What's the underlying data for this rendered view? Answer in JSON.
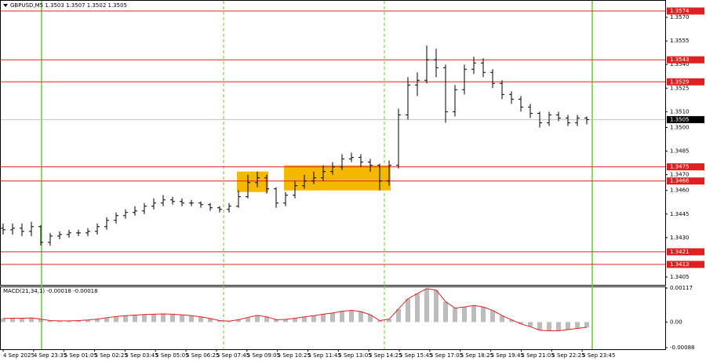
{
  "chart_data": {
    "type": "candlestick",
    "title": "GBPUSD,M5  1.3503 1.3507 1.3502 1.3505",
    "x_labels": [
      "4 Sep 2025",
      "4 Sep 23:35",
      "5 Sep 01:05",
      "5 Sep 02:25",
      "5 Sep 03:45",
      "5 Sep 05:05",
      "5 Sep 06:25",
      "5 Sep 07:45",
      "5 Sep 09:05",
      "5 Sep 10:25",
      "5 Sep 11:45",
      "5 Sep 13:05",
      "5 Sep 14:25",
      "5 Sep 15:45",
      "5 Sep 17:05",
      "5 Sep 18:25",
      "5 Sep 19:45",
      "5 Sep 21:05",
      "5 Sep 22:25",
      "5 Sep 23:45"
    ],
    "color": "#000000",
    "open": [
      1.3436,
      1.3435,
      1.3436,
      1.3434,
      1.3437,
      1.3427,
      1.3431,
      1.3432,
      1.3433,
      1.3433,
      1.3434,
      1.3437,
      1.3441,
      1.3444,
      1.3446,
      1.3447,
      1.345,
      1.3452,
      1.3454,
      1.3453,
      1.3452,
      1.3452,
      1.3451,
      1.3449,
      1.3448,
      1.345,
      1.3456,
      1.3465,
      1.3468,
      1.3461,
      1.3452,
      1.3457,
      1.3463,
      1.3466,
      1.3468,
      1.3472,
      1.3475,
      1.348,
      1.3481,
      1.3478,
      1.3476,
      1.3466,
      1.3476,
      1.3508,
      1.3527,
      1.353,
      1.3543,
      1.3538,
      1.351,
      1.3524,
      1.3537,
      1.3541,
      1.3535,
      1.3528,
      1.3521,
      1.3518,
      1.3513,
      1.3509,
      1.3503,
      1.3508,
      1.3506,
      1.3503,
      1.3506
    ],
    "high": [
      1.3439,
      1.3439,
      1.3439,
      1.344,
      1.3438,
      1.3433,
      1.3434,
      1.3435,
      1.3435,
      1.3436,
      1.3439,
      1.3443,
      1.3446,
      1.3448,
      1.345,
      1.3452,
      1.3455,
      1.3457,
      1.3456,
      1.3455,
      1.3454,
      1.3453,
      1.3452,
      1.345,
      1.3452,
      1.346,
      1.347,
      1.3472,
      1.347,
      1.3462,
      1.3459,
      1.3466,
      1.347,
      1.3472,
      1.3476,
      1.3478,
      1.3483,
      1.3484,
      1.3483,
      1.348,
      1.3477,
      1.3479,
      1.3512,
      1.3532,
      1.3535,
      1.3552,
      1.355,
      1.354,
      1.3527,
      1.354,
      1.3545,
      1.3544,
      1.3537,
      1.353,
      1.3523,
      1.352,
      1.3515,
      1.351,
      1.351,
      1.351,
      1.3508,
      1.3508,
      1.3507
    ],
    "low": [
      1.3432,
      1.3432,
      1.3431,
      1.3431,
      1.3425,
      1.3425,
      1.3429,
      1.343,
      1.3431,
      1.3431,
      1.3432,
      1.3435,
      1.3439,
      1.3442,
      1.3444,
      1.3445,
      1.3448,
      1.345,
      1.3451,
      1.345,
      1.345,
      1.3449,
      1.3447,
      1.3446,
      1.3446,
      1.3449,
      1.3455,
      1.3462,
      1.3458,
      1.3449,
      1.345,
      1.3455,
      1.3461,
      1.3464,
      1.3466,
      1.347,
      1.3473,
      1.3478,
      1.3475,
      1.3472,
      1.346,
      1.3463,
      1.3474,
      1.3505,
      1.352,
      1.3528,
      1.3532,
      1.3503,
      1.3507,
      1.3521,
      1.3534,
      1.3532,
      1.3525,
      1.3518,
      1.3515,
      1.351,
      1.3506,
      1.35,
      1.3501,
      1.3504,
      1.3501,
      1.3501,
      1.3502
    ],
    "close": [
      1.3435,
      1.3436,
      1.3434,
      1.3437,
      1.3427,
      1.3431,
      1.3432,
      1.3433,
      1.3433,
      1.3434,
      1.3437,
      1.3441,
      1.3444,
      1.3446,
      1.3447,
      1.345,
      1.3452,
      1.3454,
      1.3453,
      1.3452,
      1.3452,
      1.3451,
      1.3449,
      1.3448,
      1.345,
      1.3456,
      1.3465,
      1.3468,
      1.3461,
      1.3452,
      1.3457,
      1.3463,
      1.3466,
      1.3468,
      1.3472,
      1.3475,
      1.348,
      1.3481,
      1.3478,
      1.3476,
      1.3466,
      1.3476,
      1.3508,
      1.3527,
      1.353,
      1.3543,
      1.3538,
      1.351,
      1.3524,
      1.3537,
      1.3541,
      1.3535,
      1.3528,
      1.3521,
      1.3518,
      1.3513,
      1.3509,
      1.3503,
      1.3508,
      1.3506,
      1.3503,
      1.3506,
      1.3505
    ],
    "ylim": [
      1.34,
      1.358
    ],
    "yticks": [
      {
        "value": 1.357,
        "label": "1.3570"
      },
      {
        "value": 1.3555,
        "label": "1.3555"
      },
      {
        "value": 1.354,
        "label": "1.3540"
      },
      {
        "value": 1.3525,
        "label": "1.3525"
      },
      {
        "value": 1.351,
        "label": "1.3510"
      },
      {
        "value": 1.35,
        "label": "1.3500"
      },
      {
        "value": 1.3485,
        "label": "1.3485"
      },
      {
        "value": 1.347,
        "label": "1.3470"
      },
      {
        "value": 1.346,
        "label": "1.3460"
      },
      {
        "value": 1.3445,
        "label": "1.3445"
      },
      {
        "value": 1.343,
        "label": "1.3430"
      },
      {
        "value": 1.3405,
        "label": "1.3405"
      }
    ],
    "levels": [
      {
        "value": 1.3574,
        "label": "1.3574"
      },
      {
        "value": 1.3543,
        "label": "1.3543"
      },
      {
        "value": 1.3529,
        "label": "1.3529"
      },
      {
        "value": 1.3475,
        "label": "1.3475"
      },
      {
        "value": 1.3466,
        "label": "1.3466"
      },
      {
        "value": 1.3421,
        "label": "1.3421"
      },
      {
        "value": 1.3413,
        "label": "1.3413"
      }
    ],
    "level_color": "#e02020",
    "current_price": {
      "value": 1.3505,
      "label": "1.3505"
    },
    "zones": [
      {
        "from": 25,
        "to": 28,
        "low": 1.3459,
        "high": 1.3472
      },
      {
        "from": 30,
        "to": 41,
        "low": 1.346,
        "high": 1.3476
      }
    ],
    "zone_color": "#f5b800",
    "macd": {
      "label": "MACD(21,34,1) -0.00018 -0.00018",
      "values": [
        0.00012,
        0.00013,
        0.00013,
        0.00014,
        0.0001,
        5e-05,
        4e-05,
        4e-05,
        5e-05,
        7e-05,
        0.0001,
        0.00015,
        0.00019,
        0.00022,
        0.00024,
        0.00026,
        0.00027,
        0.00028,
        0.00027,
        0.00025,
        0.00022,
        0.00018,
        0.00012,
        5e-05,
        3e-05,
        8e-05,
        0.00016,
        0.00023,
        0.00018,
        8e-05,
        9e-05,
        0.00013,
        0.00018,
        0.00022,
        0.00027,
        0.00031,
        0.00037,
        0.0004,
        0.00036,
        0.00025,
        5e-05,
        0.0001,
        0.00045,
        0.0008,
        0.00098,
        0.00115,
        0.0011,
        0.0007,
        0.00048,
        0.00052,
        0.00057,
        0.00052,
        0.0004,
        0.00022,
        8e-05,
        -6e-05,
        -0.00016,
        -0.00028,
        -0.0003,
        -0.0003,
        -0.00026,
        -0.00022,
        -0.00018
      ],
      "color": "#a0a0a0",
      "signal_color": "#e02020",
      "ylim": [
        -0.00088,
        0.00117
      ],
      "yticks": [
        {
          "value": 0.00117,
          "label": "0.00117"
        },
        {
          "value": 0,
          "label": "0.00"
        },
        {
          "value": -0.00088,
          "label": "-0.00088"
        }
      ]
    }
  }
}
